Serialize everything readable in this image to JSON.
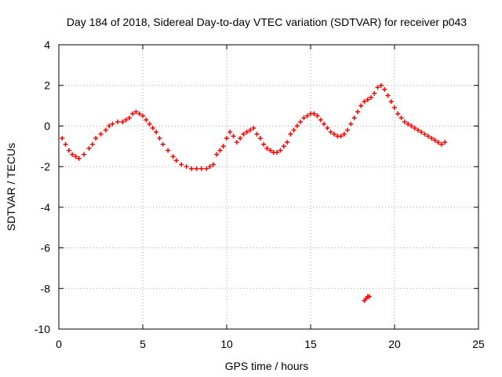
{
  "chart_data": {
    "type": "scatter",
    "title": "Day 184 of 2018, Sidereal Day-to-day VTEC variation (SDTVAR) for receiver p043",
    "xlabel": "GPS time / hours",
    "ylabel": "SDTVAR / TECUs",
    "xlim": [
      0,
      25
    ],
    "ylim": [
      -10,
      4
    ],
    "xticks": [
      "0",
      "5",
      "10",
      "15",
      "20",
      "25"
    ],
    "yticks": [
      "-10",
      "-8",
      "-6",
      "-4",
      "-2",
      "0",
      "2",
      "4"
    ],
    "grid": true,
    "marker": "+",
    "marker_color": "#ff0000",
    "series": [
      {
        "name": "SDTVAR",
        "x": [
          0.2,
          0.4,
          0.6,
          0.8,
          1.0,
          1.2,
          1.5,
          1.8,
          2.0,
          2.2,
          2.5,
          2.8,
          3.0,
          3.2,
          3.5,
          3.8,
          4.0,
          4.2,
          4.4,
          4.6,
          4.8,
          5.0,
          5.2,
          5.4,
          5.6,
          5.8,
          6.0,
          6.2,
          6.5,
          6.8,
          7.0,
          7.3,
          7.6,
          7.9,
          8.2,
          8.5,
          8.8,
          9.0,
          9.2,
          9.4,
          9.6,
          9.8,
          10.0,
          10.2,
          10.4,
          10.6,
          10.8,
          11.0,
          11.2,
          11.4,
          11.6,
          11.8,
          12.0,
          12.2,
          12.4,
          12.6,
          12.8,
          13.0,
          13.2,
          13.4,
          13.6,
          13.8,
          14.0,
          14.2,
          14.4,
          14.6,
          14.8,
          15.0,
          15.2,
          15.4,
          15.6,
          15.8,
          16.0,
          16.2,
          16.4,
          16.6,
          16.8,
          17.0,
          17.2,
          17.4,
          17.6,
          17.8,
          18.0,
          18.2,
          18.4,
          18.6,
          18.8,
          19.0,
          19.2,
          19.4,
          19.6,
          19.8,
          20.0,
          20.2,
          20.4,
          20.6,
          20.8,
          21.0,
          21.2,
          21.4,
          21.6,
          21.8,
          22.0,
          22.2,
          22.4,
          22.6,
          22.8,
          23.0,
          18.2,
          18.3,
          18.4,
          18.5
        ],
        "y": [
          -0.6,
          -0.9,
          -1.2,
          -1.4,
          -1.5,
          -1.6,
          -1.4,
          -1.1,
          -0.9,
          -0.6,
          -0.4,
          -0.2,
          0.0,
          0.1,
          0.2,
          0.2,
          0.3,
          0.4,
          0.6,
          0.7,
          0.6,
          0.5,
          0.3,
          0.1,
          -0.1,
          -0.3,
          -0.6,
          -0.9,
          -1.2,
          -1.5,
          -1.7,
          -1.9,
          -2.0,
          -2.1,
          -2.1,
          -2.1,
          -2.1,
          -2.0,
          -1.9,
          -1.4,
          -1.2,
          -1.0,
          -0.6,
          -0.3,
          -0.5,
          -0.8,
          -0.6,
          -0.4,
          -0.3,
          -0.2,
          -0.1,
          -0.4,
          -0.6,
          -0.9,
          -1.1,
          -1.2,
          -1.3,
          -1.3,
          -1.2,
          -1.0,
          -0.8,
          -0.4,
          -0.2,
          0.0,
          0.2,
          0.4,
          0.5,
          0.6,
          0.6,
          0.5,
          0.3,
          0.1,
          -0.1,
          -0.3,
          -0.4,
          -0.5,
          -0.5,
          -0.4,
          -0.2,
          0.1,
          0.4,
          0.7,
          1.0,
          1.2,
          1.3,
          1.4,
          1.6,
          1.9,
          2.0,
          1.8,
          1.5,
          1.2,
          0.9,
          0.6,
          0.4,
          0.2,
          0.1,
          0.0,
          -0.1,
          -0.2,
          -0.3,
          -0.4,
          -0.5,
          -0.6,
          -0.7,
          -0.8,
          -0.9,
          -0.8,
          -8.6,
          -8.5,
          -8.4,
          -8.4
        ]
      }
    ]
  }
}
